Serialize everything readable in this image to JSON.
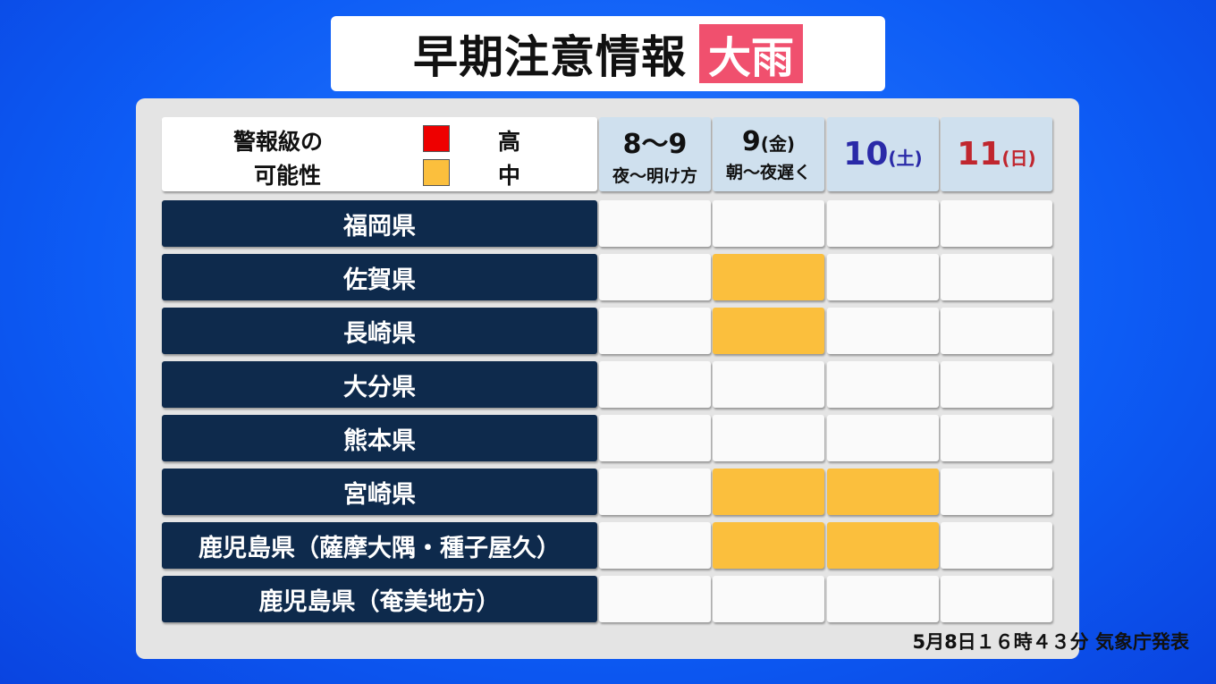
{
  "title": {
    "text": "早期注意情報",
    "badge": "大雨"
  },
  "legend": {
    "label_line1": "警報級の",
    "label_line2": "可能性",
    "high": "高",
    "medium": "中",
    "colors": {
      "high": "#ee0000",
      "medium": "#fbbf3d"
    }
  },
  "columns": [
    {
      "main": "8〜9",
      "sub": "夜〜明け方",
      "color": "#111111"
    },
    {
      "main": "9",
      "paren": "(金)",
      "sub": "朝〜夜遅く",
      "color": "#111111"
    },
    {
      "main": "10",
      "paren": "(土)",
      "color": "#2a2aa8"
    },
    {
      "main": "11",
      "paren": "(日)",
      "color": "#c0262e"
    }
  ],
  "rows": [
    {
      "name": "福岡県",
      "levels": [
        "none",
        "none",
        "none",
        "none"
      ]
    },
    {
      "name": "佐賀県",
      "levels": [
        "none",
        "medium",
        "none",
        "none"
      ]
    },
    {
      "name": "長崎県",
      "levels": [
        "none",
        "medium",
        "none",
        "none"
      ]
    },
    {
      "name": "大分県",
      "levels": [
        "none",
        "none",
        "none",
        "none"
      ]
    },
    {
      "name": "熊本県",
      "levels": [
        "none",
        "none",
        "none",
        "none"
      ]
    },
    {
      "name": "宮崎県",
      "levels": [
        "none",
        "medium",
        "medium",
        "none"
      ]
    },
    {
      "name": "鹿児島県（薩摩大隅・種子屋久）",
      "levels": [
        "none",
        "medium",
        "medium",
        "none"
      ]
    },
    {
      "name": "鹿児島県（奄美地方）",
      "levels": [
        "none",
        "none",
        "none",
        "none"
      ]
    }
  ],
  "footer": "5月8日１６時４３分 気象庁発表"
}
